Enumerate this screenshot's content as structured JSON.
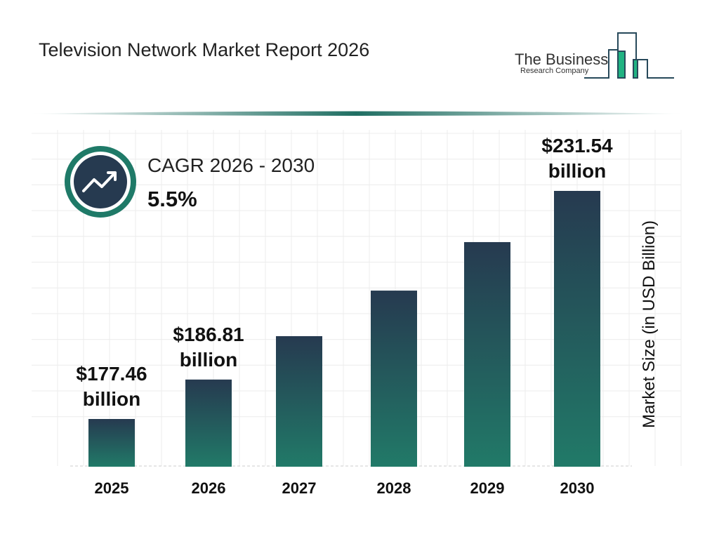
{
  "title": "Television Network Market Report 2026",
  "logo": {
    "line1": "The Business",
    "line2": "Research Company"
  },
  "cagr": {
    "label": "CAGR 2026 - 2030",
    "value": "5.5%",
    "icon": "trending-up-icon"
  },
  "colors": {
    "bar_top": "#263a50",
    "bar_bottom": "#217a68",
    "accent": "#1f7a68"
  },
  "chart_data": {
    "type": "bar",
    "categories": [
      "2025",
      "2026",
      "2027",
      "2028",
      "2029",
      "2030"
    ],
    "values": [
      177.46,
      186.81,
      197.1,
      207.9,
      219.4,
      231.54
    ],
    "data_labels": [
      {
        "index": 0,
        "line1": "$177.46",
        "line2": "billion"
      },
      {
        "index": 1,
        "line1": "$186.81",
        "line2": "billion"
      },
      {
        "index": 5,
        "line1": "$231.54",
        "line2": "billion"
      }
    ],
    "ylabel": "Market Size (in USD Billion)",
    "grid": true
  }
}
